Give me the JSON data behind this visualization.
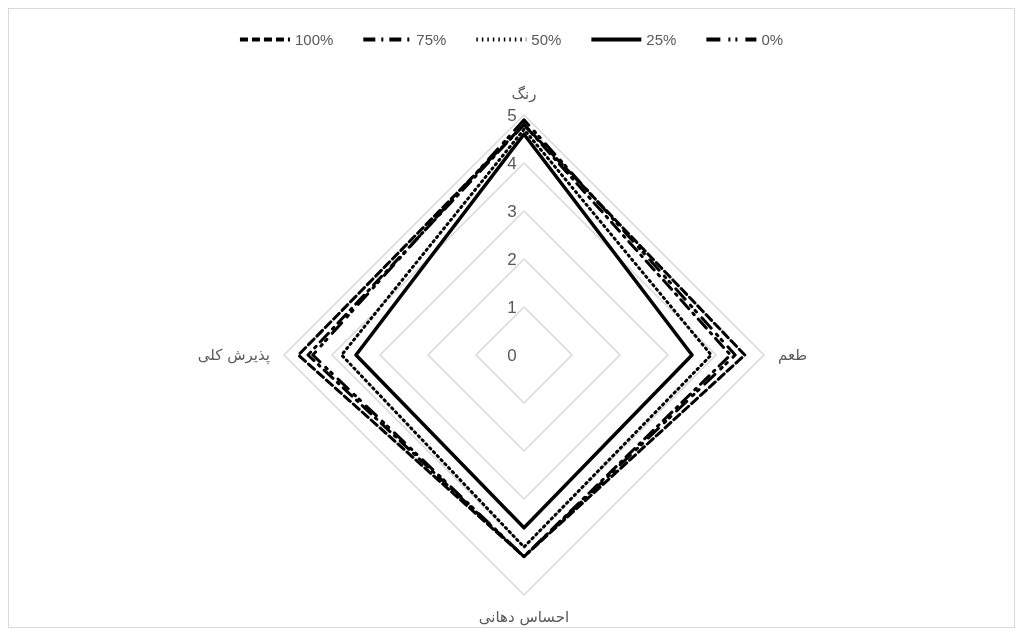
{
  "chart_data": {
    "type": "radar",
    "categories": [
      "رنگ",
      "طعم",
      "احساس دهانی",
      "پذیرش کلی"
    ],
    "ylim": [
      0,
      5
    ],
    "yticks": [
      0,
      1,
      2,
      3,
      4,
      5
    ],
    "grid": true,
    "legend": "top",
    "marker": "none",
    "series": [
      {
        "name": "100%",
        "color": "#000000",
        "line_style": "dashed",
        "values": [
          4.8,
          4.6,
          4.2,
          4.7
        ]
      },
      {
        "name": "75%",
        "color": "#000000",
        "line_style": "dashed",
        "values": [
          4.8,
          4.3,
          4.2,
          4.5
        ]
      },
      {
        "name": "50%",
        "color": "#000000",
        "line_style": "dotted",
        "values": [
          4.7,
          3.9,
          4.0,
          3.8
        ]
      },
      {
        "name": "25%",
        "color": "#000000",
        "line_style": "solid",
        "values": [
          4.6,
          3.5,
          3.6,
          3.5
        ]
      },
      {
        "name": "0%",
        "color": "#000000",
        "line_style": "dashed",
        "values": [
          4.9,
          4.4,
          4.2,
          4.4
        ]
      }
    ]
  }
}
